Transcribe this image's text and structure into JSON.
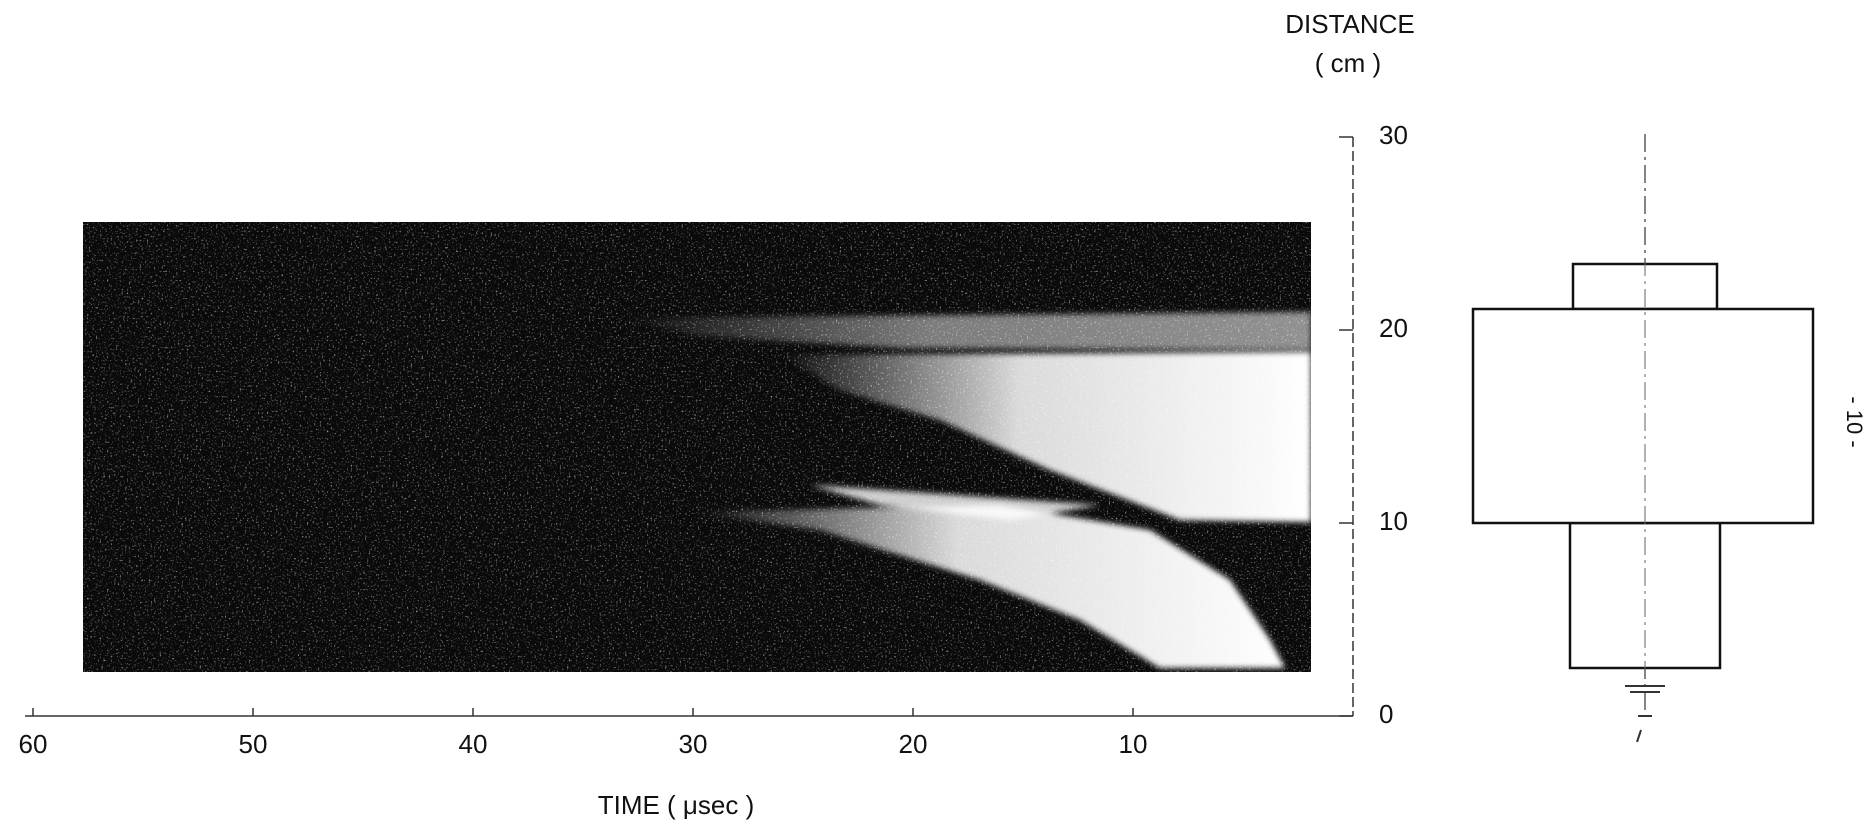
{
  "chart_data": {
    "type": "streak-image",
    "y_label": "DISTANCE",
    "y_unit": "( cm )",
    "x_label": "TIME ( μsec )",
    "xlim": [
      60,
      0
    ],
    "xticks": [
      60,
      50,
      40,
      30,
      20,
      10
    ],
    "ylim": [
      0,
      30
    ],
    "yticks": [
      0,
      10,
      20,
      30
    ]
  },
  "page_number": "- 10 -"
}
